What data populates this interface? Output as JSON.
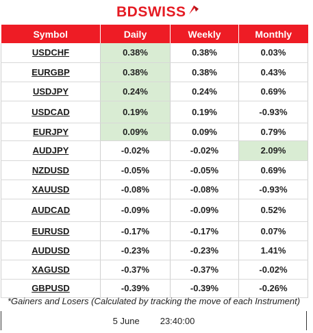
{
  "brand": {
    "name": "BDSWISS",
    "color": "#e51b23"
  },
  "table": {
    "headers": [
      "Symbol",
      "Daily",
      "Weekly",
      "Monthly"
    ],
    "header_color": "#ee1c25",
    "highlight_color": "#d9ecd3",
    "rows": [
      {
        "symbol": "USDCHF",
        "daily": "0.38%",
        "weekly": "0.38%",
        "monthly": "0.03%",
        "highlight": "daily"
      },
      {
        "symbol": "EURGBP",
        "daily": "0.38%",
        "weekly": "0.38%",
        "monthly": "0.43%",
        "highlight": "daily"
      },
      {
        "symbol": "USDJPY",
        "daily": "0.24%",
        "weekly": "0.24%",
        "monthly": "0.69%",
        "highlight": "daily"
      },
      {
        "symbol": "USDCAD",
        "daily": "0.19%",
        "weekly": "0.19%",
        "monthly": "-0.93%",
        "highlight": "daily"
      },
      {
        "symbol": "EURJPY",
        "daily": "0.09%",
        "weekly": "0.09%",
        "monthly": "0.79%",
        "highlight": "daily"
      },
      {
        "symbol": "AUDJPY",
        "daily": "-0.02%",
        "weekly": "-0.02%",
        "monthly": "2.09%",
        "highlight": "monthly"
      },
      {
        "symbol": "NZDUSD",
        "daily": "-0.05%",
        "weekly": "-0.05%",
        "monthly": "0.69%",
        "highlight": ""
      },
      {
        "symbol": "XAUUSD",
        "daily": "-0.08%",
        "weekly": "-0.08%",
        "monthly": "-0.93%",
        "highlight": ""
      },
      {
        "symbol": "AUDCAD",
        "daily": "-0.09%",
        "weekly": "-0.09%",
        "monthly": "0.52%",
        "highlight": ""
      },
      {
        "symbol": "EURUSD",
        "daily": "-0.17%",
        "weekly": "-0.17%",
        "monthly": "0.07%",
        "highlight": ""
      },
      {
        "symbol": "AUDUSD",
        "daily": "-0.23%",
        "weekly": "-0.23%",
        "monthly": "1.41%",
        "highlight": ""
      },
      {
        "symbol": "XAGUSD",
        "daily": "-0.37%",
        "weekly": "-0.37%",
        "monthly": "-0.02%",
        "highlight": ""
      },
      {
        "symbol": "GBPUSD",
        "daily": "-0.39%",
        "weekly": "-0.39%",
        "monthly": "-0.26%",
        "highlight": ""
      }
    ]
  },
  "footnote": "*Gainers and Losers (Calculated by tracking the move of each Instrument)",
  "timestamp": {
    "date": "5 June",
    "time": "23:40:00"
  }
}
